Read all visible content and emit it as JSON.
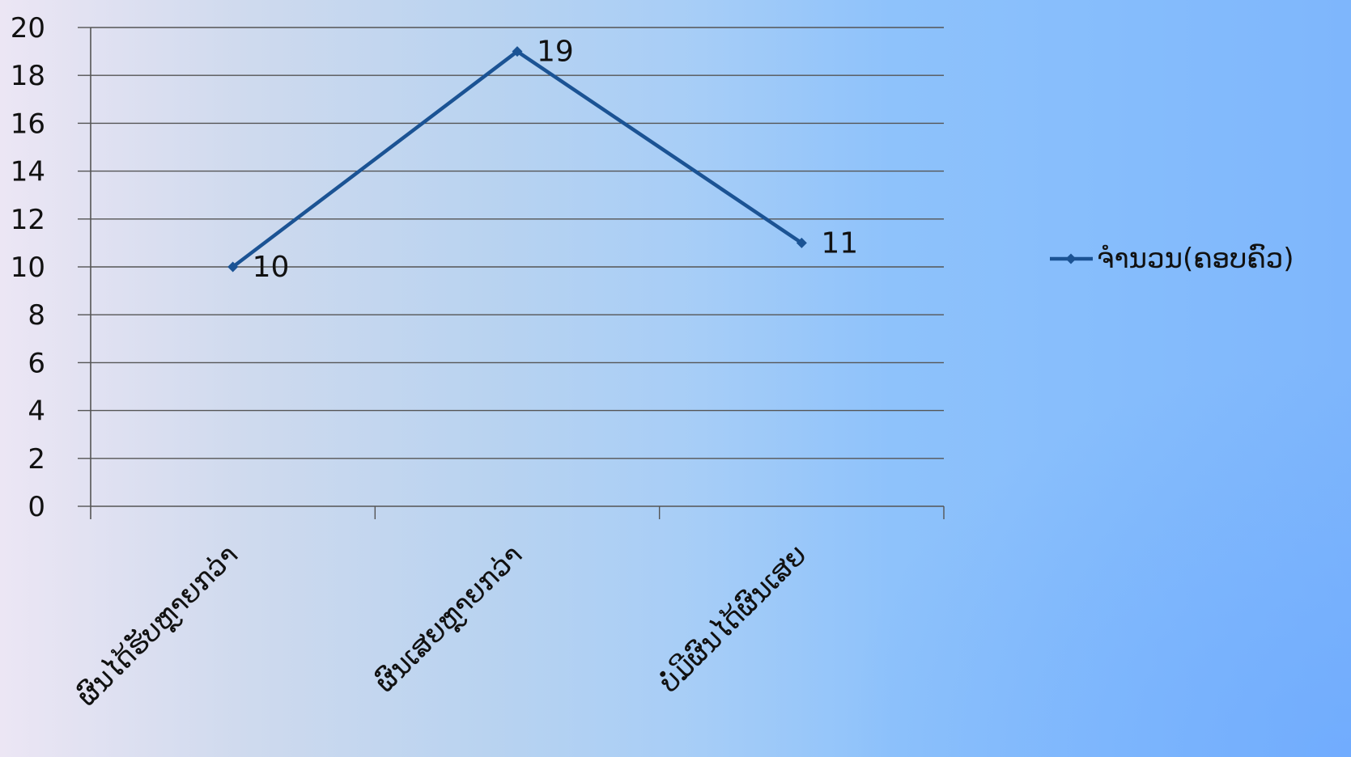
{
  "chart_data": {
    "type": "line",
    "categories": [
      "ຜົນໄດ້ຮັບຫຼາຍກວ່າ",
      "ຜົນເສຍຫຼາຍກວ່າ",
      "ບໍ່ມີຜົນໄດ້ຜົນເສຍ"
    ],
    "series": [
      {
        "name": "ຈຳນວນ(ຄອບຄົວ)",
        "values": [
          10,
          19,
          11
        ]
      }
    ],
    "y_ticks": [
      0,
      2,
      4,
      6,
      8,
      10,
      12,
      14,
      16,
      18,
      20
    ],
    "ylim": [
      0,
      20
    ],
    "grid": true,
    "data_labels": true,
    "legend_position": "right",
    "series_color": "#1b5394",
    "grid_color": "#555555"
  }
}
